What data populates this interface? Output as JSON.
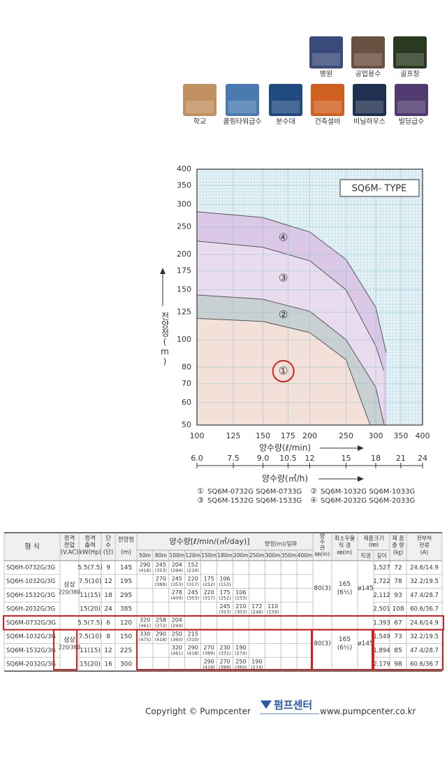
{
  "icons": [
    "병원",
    "공업용수",
    "골프장",
    "학교",
    "쿨링타워급수",
    "분수대",
    "건축설비",
    "비닐하우스",
    "빌딩급수"
  ],
  "chart_data": {
    "type": "area",
    "title": "SQ6M- TYPE",
    "y_label": "전양정(m)",
    "x_label": "양수량(ℓ/min)",
    "x2_label": "양수량(㎥/h)",
    "x_log": true,
    "y_log": true,
    "grid": true,
    "xlim": [
      100,
      400
    ],
    "xticks": [
      100,
      125,
      150,
      175,
      200,
      250,
      300,
      350,
      400
    ],
    "ylim": [
      50,
      400
    ],
    "yticks": [
      50,
      60,
      70,
      80,
      100,
      125,
      150,
      175,
      200,
      250,
      300,
      350,
      400
    ],
    "x2lim": [
      6,
      24
    ],
    "x2ticks": [
      {
        "value": 6,
        "label": "6.0"
      },
      7.5,
      {
        "value": 9,
        "label": "9.0"
      },
      10.5,
      12,
      15,
      18,
      21,
      24
    ],
    "series": [
      {
        "name": "①",
        "color": "#f3e1d9",
        "x": [
          100,
          150,
          200,
          250,
          290
        ],
        "values": [
          119,
          116,
          106,
          85,
          50
        ]
      },
      {
        "name": "②",
        "color": "#c9d0d2",
        "x": [
          100,
          150,
          200,
          250,
          300,
          316
        ],
        "values": [
          144,
          139,
          126,
          100,
          68,
          50
        ]
      },
      {
        "name": "③",
        "color": "#eadcef",
        "x": [
          100,
          150,
          200,
          250,
          300,
          315
        ],
        "values": [
          223,
          212,
          190,
          150,
          95,
          78
        ]
      },
      {
        "name": "④",
        "color": "#dbc8e7",
        "x": [
          100,
          150,
          200,
          250,
          300,
          320
        ],
        "values": [
          283,
          270,
          240,
          192,
          130,
          90
        ]
      }
    ],
    "legend": [
      "SQ6M-0732G  SQ6M-0733G",
      "SQ6M-1032G  SQ6M-1033G",
      "SQ6M-1532G  SQ6M-1533G",
      "SQ6M-2032G  SQ6M-2033G"
    ]
  },
  "table": {
    "header": {
      "model": "형 식",
      "voltage": [
        "정격",
        "전압",
        "(V.AC)"
      ],
      "output": [
        "정격",
        "출력",
        "kW(Hp)"
      ],
      "stages": [
        "단",
        "수",
        "(단)"
      ],
      "head": "전양정",
      "head_unit": "(m)",
      "flow": "양수량[ℓ/min/(㎥/day)]",
      "flow_sub": "양정(m)/일파",
      "flows": [
        "50m",
        "80m",
        "100m",
        "120m",
        "150m",
        "180m",
        "200m",
        "250m",
        "300m",
        "350m",
        "400m"
      ],
      "pipe": [
        "양",
        "수",
        "관",
        "㎜(in)"
      ],
      "well": [
        "최소우물",
        "직 경",
        "㎜(in)"
      ],
      "size": [
        "제품크기",
        "(㎜)"
      ],
      "diameter": "직경",
      "length": "길이",
      "weight": [
        "제 품",
        "중 량",
        "(㎏)"
      ],
      "current": [
        "전부하",
        "전류",
        "(A)"
      ]
    },
    "groups": [
      {
        "voltage": [
          "삼상",
          "220/380"
        ],
        "pipe": "80(3)",
        "well": [
          "165",
          "(6½)"
        ],
        "diameter": "ø145",
        "rows": [
          {
            "model": "SQ6H-0732G/3G",
            "output": "5.5(7.5)",
            "stages": "9",
            "head": "145",
            "flows": [
              [
                "290",
                "(418)"
              ],
              [
                "245",
                "(353)"
              ],
              [
                "204",
                "(294)"
              ],
              [
                "152",
                "(219)"
              ],
              null,
              null,
              null,
              null,
              null,
              null,
              null
            ],
            "length": "1,527",
            "weight": "72",
            "current": "24.6/14.9"
          },
          {
            "model": "SQ6H-1032G/3G",
            "output": "7.5(10)",
            "stages": "12",
            "head": "195",
            "flows": [
              null,
              [
                "270",
                "(389)"
              ],
              [
                "245",
                "(353)"
              ],
              [
                "220",
                "(317)"
              ],
              [
                "175",
                "(252)"
              ],
              [
                "106",
                "(153)"
              ],
              null,
              null,
              null,
              null,
              null
            ],
            "length": "1,722",
            "weight": "78",
            "current": "32.2/19.5"
          },
          {
            "model": "SQ6H-1532G/3G",
            "output": "11(15)",
            "stages": "18",
            "head": "295",
            "flows": [
              null,
              null,
              [
                "278",
                "(400)"
              ],
              [
                "245",
                "(353)"
              ],
              [
                "220",
                "(317)"
              ],
              [
                "175",
                "(252)"
              ],
              [
                "106",
                "(153)"
              ],
              null,
              null,
              null,
              null
            ],
            "length": "2,112",
            "weight": "93",
            "current": "47.4/28.7"
          },
          {
            "model": "SQ6H-2032G/3G",
            "output": "15(20)",
            "stages": "24",
            "head": "385",
            "flows": [
              null,
              null,
              null,
              null,
              null,
              [
                "245",
                "(353)"
              ],
              [
                "210",
                "(303)"
              ],
              [
                "172",
                "(248)"
              ],
              [
                "110",
                "(159)"
              ],
              null,
              null
            ],
            "length": "2,501",
            "weight": "108",
            "current": "60.6/36.7"
          }
        ]
      },
      {
        "voltage": [
          "삼상",
          "220/380"
        ],
        "pipe": "80(3)",
        "well": [
          "165",
          "(6½)"
        ],
        "diameter": "ø145",
        "rows": [
          {
            "model": "SQ6M-0732G/3G",
            "output": "5.5(7.5)",
            "stages": "6",
            "head": "120",
            "flows": [
              [
                "320",
                "(461)"
              ],
              [
                "258",
                "(372)"
              ],
              [
                "204",
                "(294)"
              ],
              null,
              null,
              null,
              null,
              null,
              null,
              null,
              null
            ],
            "length": "1,393",
            "weight": "67",
            "current": "24.6/14.9"
          },
          {
            "model": "SQ6M-1032G/3G",
            "output": "7.5(10)",
            "stages": "8",
            "head": "150",
            "flows": [
              [
                "330",
                "(475)"
              ],
              [
                "290",
                "(418)"
              ],
              [
                "250",
                "(360)"
              ],
              [
                "215",
                "(310)"
              ],
              null,
              null,
              null,
              null,
              null,
              null,
              null
            ],
            "length": "1,549",
            "weight": "73",
            "current": "32.2/19.5"
          },
          {
            "model": "SQ6M-1532G/3G",
            "output": "11(15)",
            "stages": "12",
            "head": "225",
            "flows": [
              null,
              null,
              [
                "320",
                "(461)"
              ],
              [
                "290",
                "(418)"
              ],
              [
                "270",
                "(389)"
              ],
              [
                "230",
                "(331)"
              ],
              [
                "190",
                "(274)"
              ],
              null,
              null,
              null,
              null
            ],
            "length": "1,894",
            "weight": "85",
            "current": "47.4/28.7"
          },
          {
            "model": "SQ6M-2032G/3G",
            "output": "15(20)",
            "stages": "16",
            "head": "300",
            "flows": [
              null,
              null,
              null,
              null,
              [
                "290",
                "(418)"
              ],
              [
                "270",
                "(389)"
              ],
              [
                "250",
                "(360)"
              ],
              [
                "190",
                "(274)"
              ],
              null,
              null,
              null
            ],
            "length": "2,179",
            "weight": "98",
            "current": "60.6/36.7"
          }
        ]
      }
    ]
  },
  "footer": {
    "copyright": "Copyright © Pumpcenter",
    "logo": "펌프센터",
    "url": "www.pumpcenter.co.kr"
  }
}
